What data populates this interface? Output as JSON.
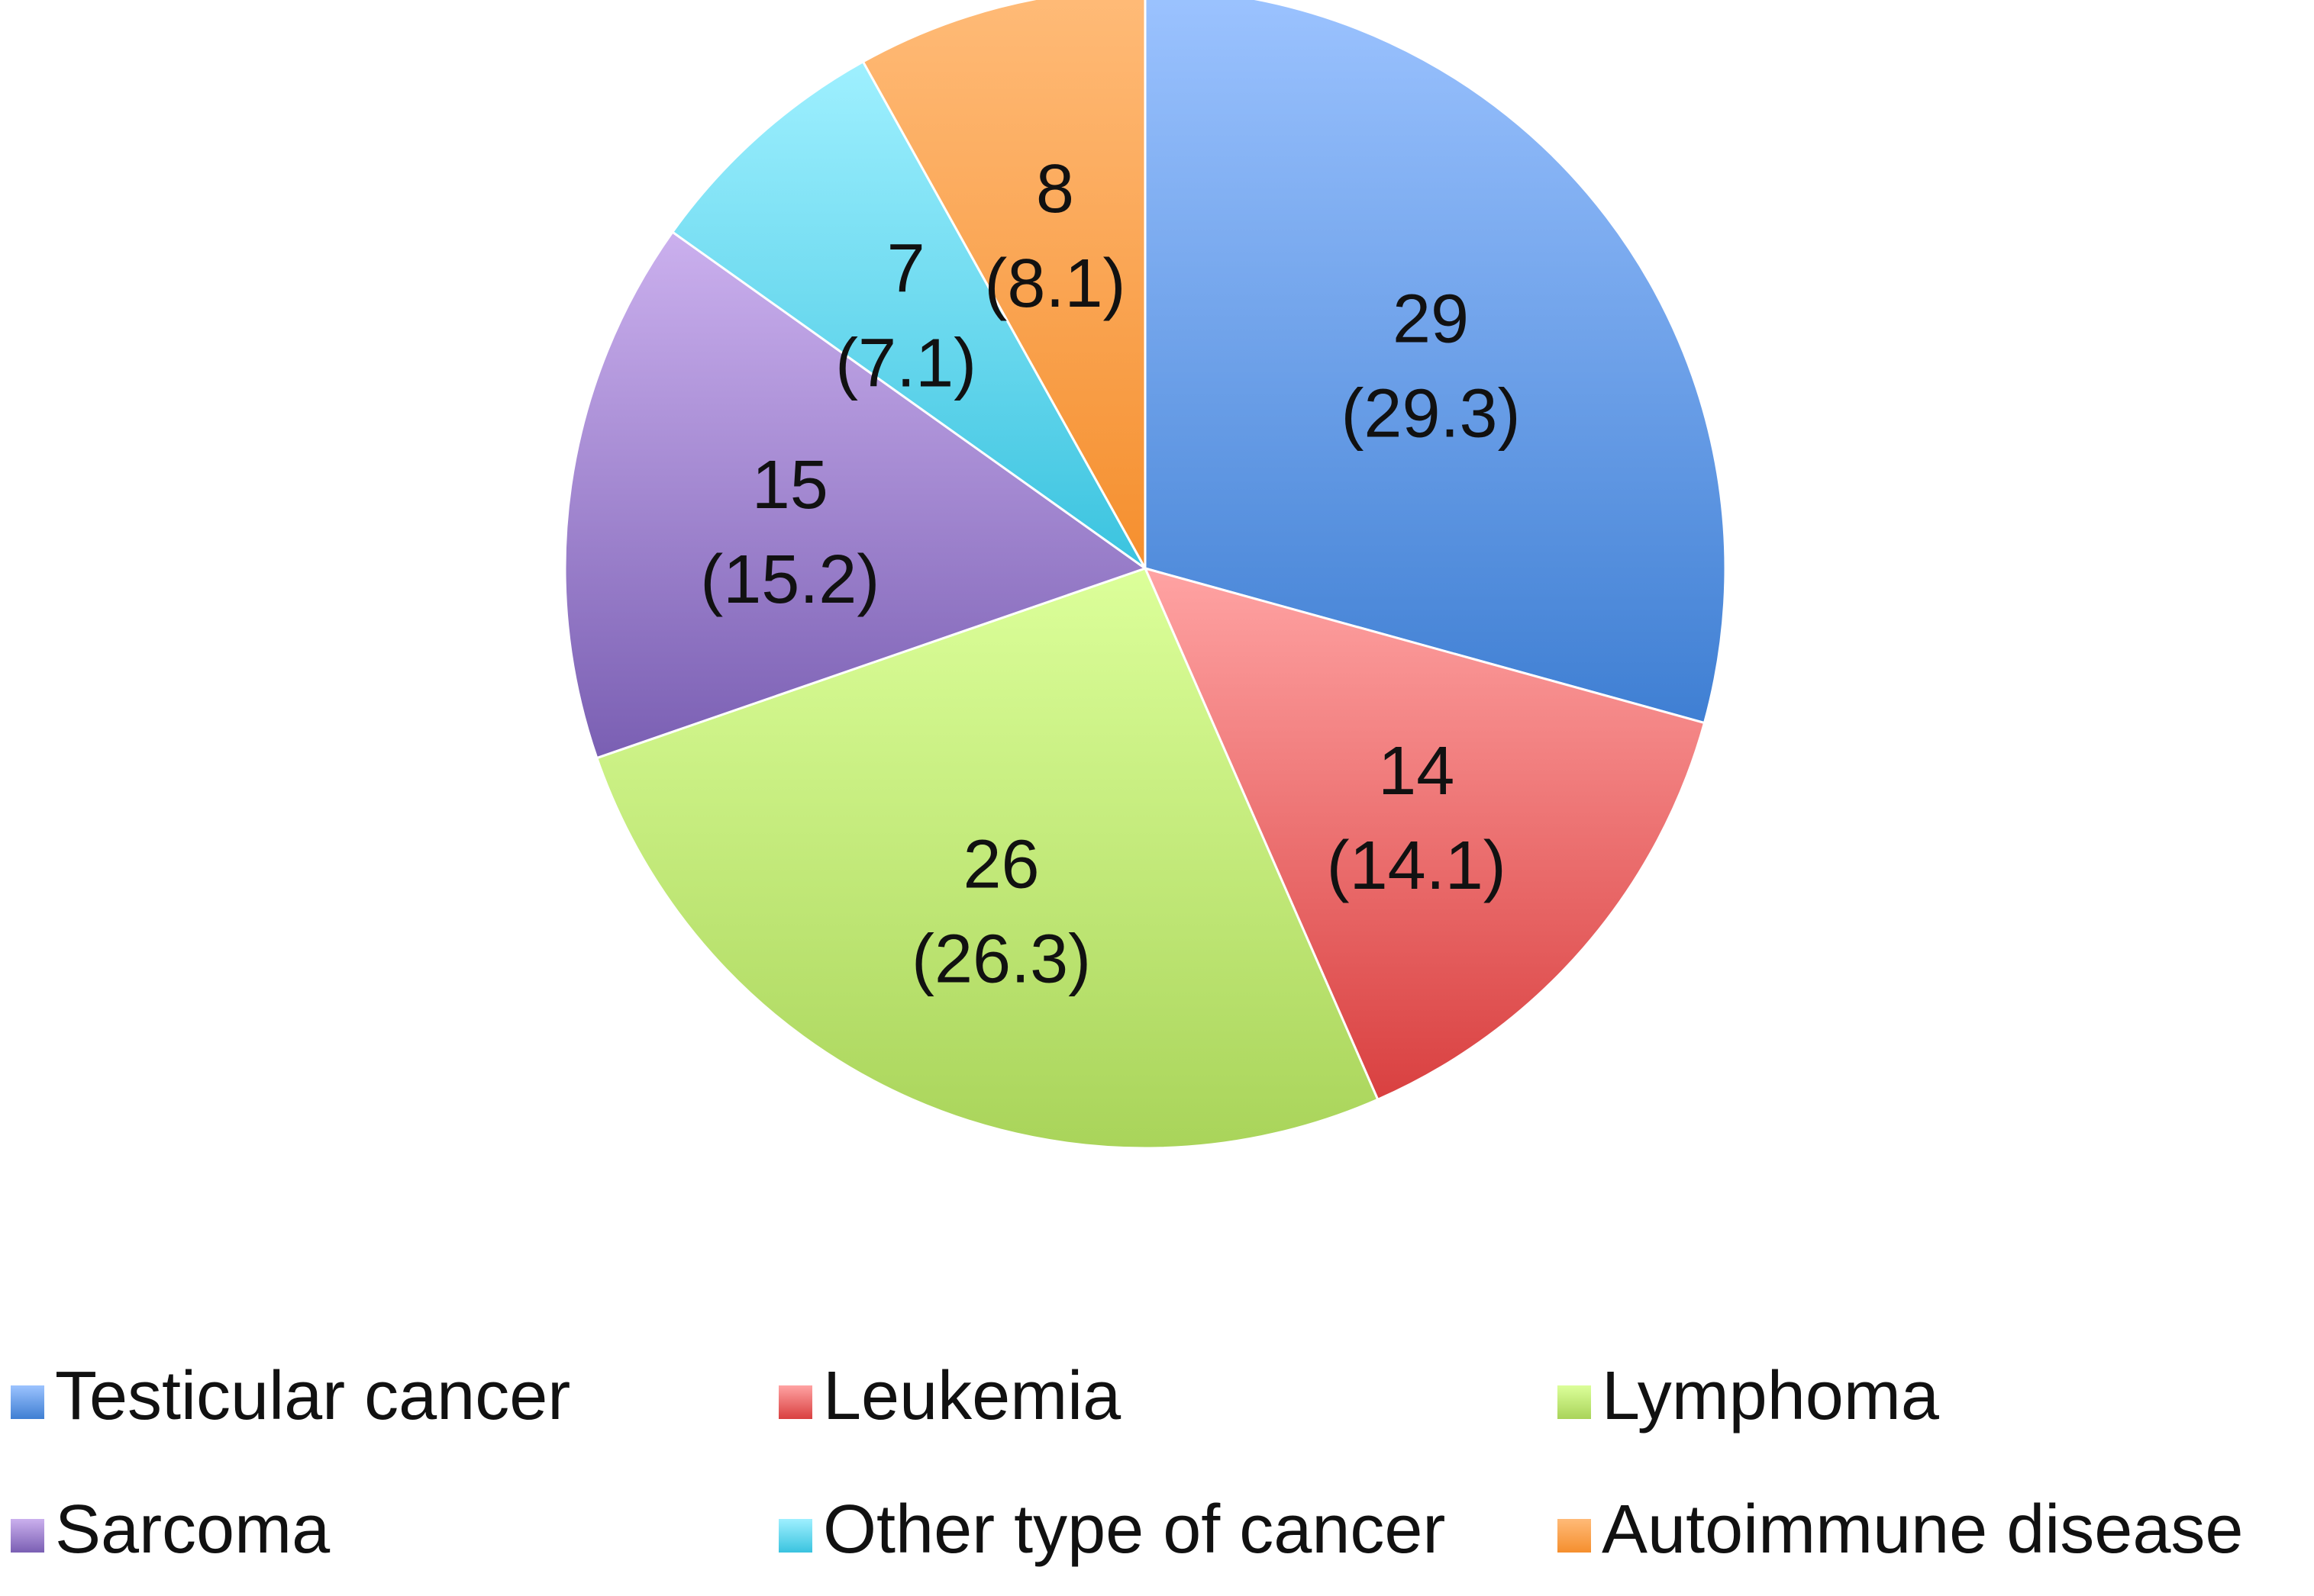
{
  "chart_data": {
    "type": "pie",
    "start_angle_deg": 0,
    "direction": "clockwise",
    "legend_placement": "bottom",
    "slices": [
      {
        "name": "Testicular cancer",
        "value": 29,
        "percent": "29.3",
        "color_light": "#9cc3ff",
        "color_dark": "#3f7fd3",
        "legend_color": "#4a86d8"
      },
      {
        "name": "Leukemia",
        "value": 14,
        "percent": "14.1",
        "color_light": "#ffa3a3",
        "color_dark": "#d94040",
        "legend_color": "#e05a5a"
      },
      {
        "name": "Lymphoma",
        "value": 26,
        "percent": "26.3",
        "color_light": "#dcff9a",
        "color_dark": "#a9d45a",
        "legend_color": "#b2dc62"
      },
      {
        "name": "Sarcoma",
        "value": 15,
        "percent": "15.2",
        "color_light": "#cbb0ee",
        "color_dark": "#7a5fb3",
        "legend_color": "#9070c4"
      },
      {
        "name": "Other type of cancer",
        "value": 7,
        "percent": "7.1",
        "color_light": "#9ff0ff",
        "color_dark": "#3ac3df",
        "legend_color": "#45c3df"
      },
      {
        "name": "Autoimmune disease",
        "value": 8,
        "percent": "8.1",
        "color_light": "#ffbb78",
        "color_dark": "#f58f2e",
        "legend_color": "#f59a3c"
      }
    ]
  }
}
